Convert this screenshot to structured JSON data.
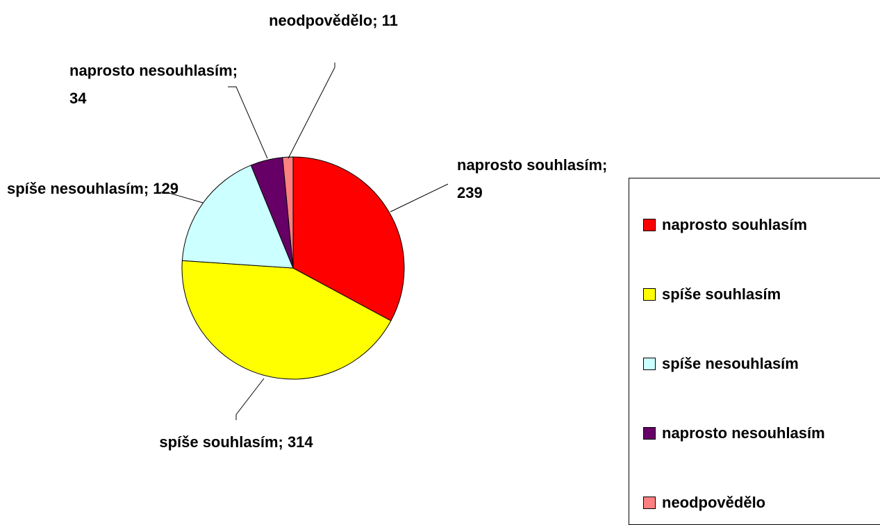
{
  "chart_data": {
    "type": "pie",
    "categories": [
      "naprosto souhlasím",
      "spíše souhlasím",
      "spíše nesouhlasím",
      "naprosto nesouhlasím",
      "neodpovědělo"
    ],
    "values": [
      239,
      314,
      129,
      34,
      11
    ],
    "value_labels": [
      "naprosto souhlasím; 239",
      "spíše souhlasím; 314",
      "spíše nesouhlasím; 129",
      "naprosto nesouhlasím; 34",
      "neodpovědělo; 11"
    ],
    "colors": [
      "#ff0000",
      "#ffff00",
      "#ccffff",
      "#660066",
      "#ff8080"
    ],
    "legend": "right"
  }
}
